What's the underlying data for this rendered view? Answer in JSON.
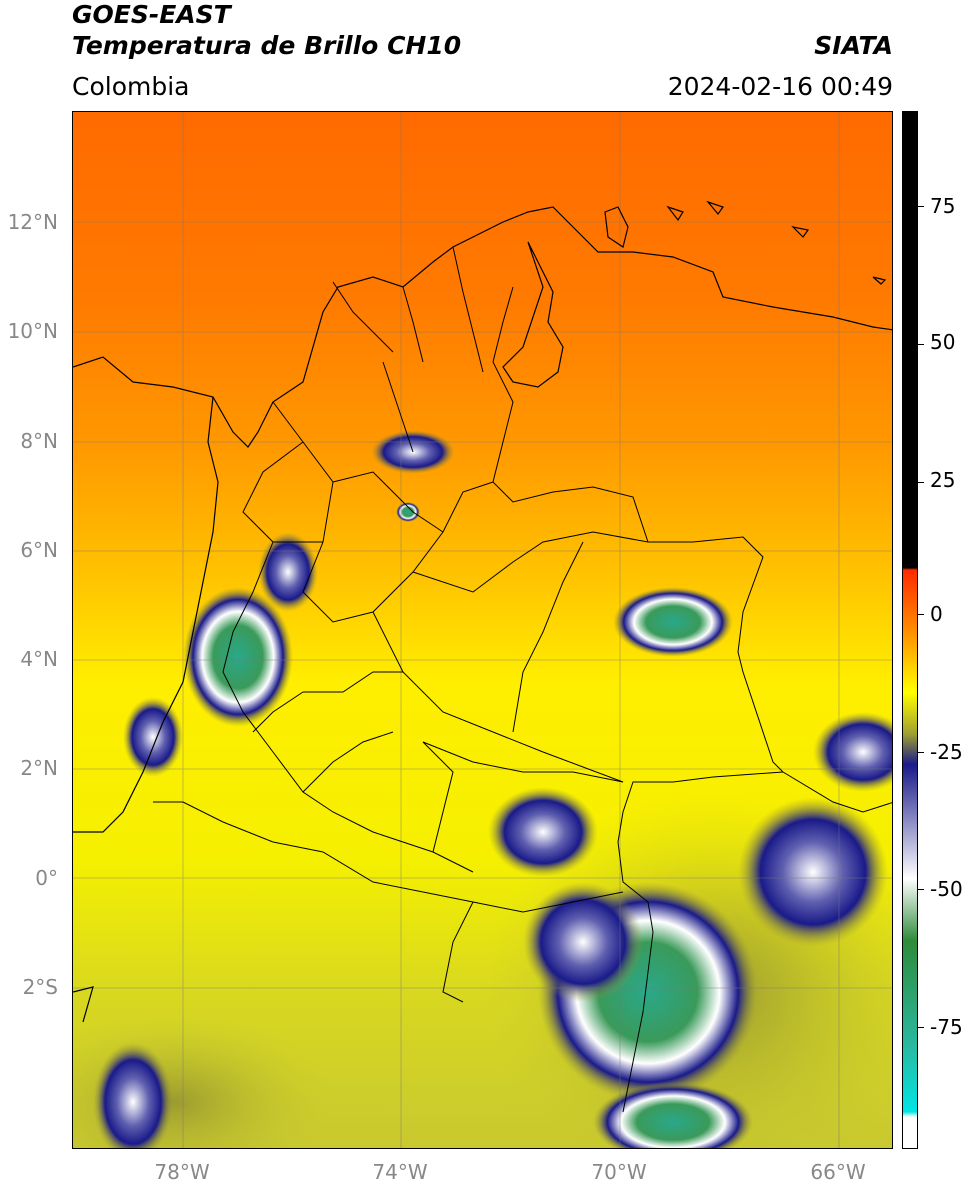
{
  "header": {
    "satellite": "GOES-EAST",
    "product": "Temperatura de Brillo CH10",
    "agency": "SIATA",
    "region": "Colombia",
    "datetime": "2024-02-16 00:49"
  },
  "axes": {
    "lat_labels": [
      "12°N",
      "10°N",
      "8°N",
      "6°N",
      "4°N",
      "2°N",
      "0°",
      "2°S"
    ],
    "lon_labels": [
      "78°W",
      "74°W",
      "70°W",
      "66°W"
    ]
  },
  "colorbar": {
    "ticks": [
      "75",
      "50",
      "25",
      "0",
      "-25",
      "-50",
      "-75"
    ],
    "colors": {
      "black": "#000000",
      "red": "#ff2a00",
      "orange": "#ff8c00",
      "yellow": "#ffff00",
      "olive": "#a0a030",
      "navy": "#1a1a8a",
      "white": "#ffffff",
      "green": "#2e8b3a",
      "teal": "#2ab8a0",
      "cyan": "#00e5e5"
    }
  },
  "chart_data": {
    "type": "heatmap",
    "title": "Temperatura de Brillo CH10",
    "xlabel": "",
    "ylabel": "",
    "lon_range": [
      -80,
      -65
    ],
    "lat_range": [
      -5,
      14
    ],
    "value_range": [
      -100,
      90
    ],
    "colorbar_ticks": [
      75,
      50,
      25,
      0,
      -25,
      -50,
      -75
    ],
    "grid": true
  }
}
